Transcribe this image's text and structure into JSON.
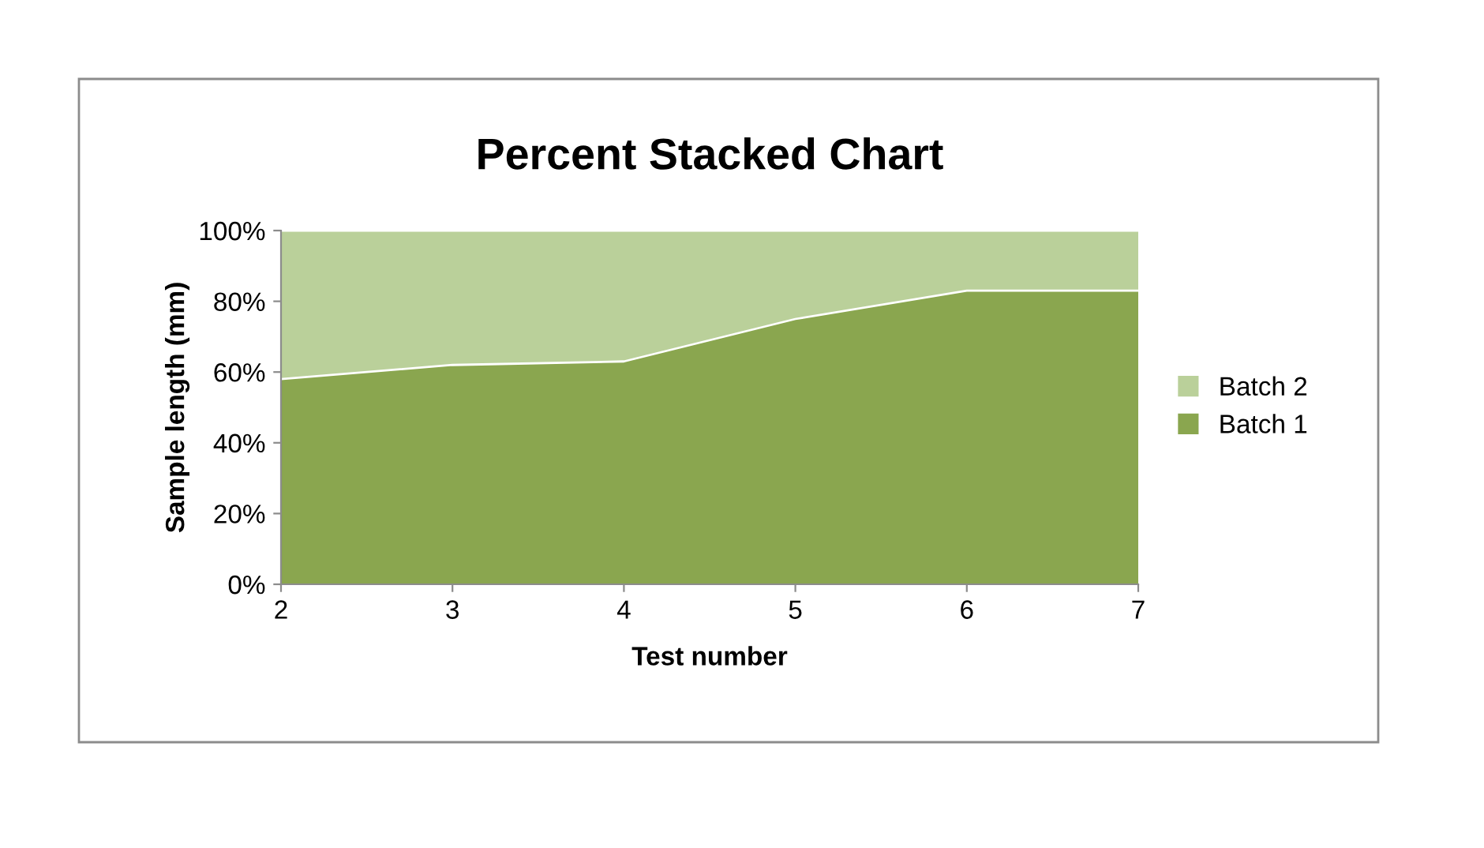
{
  "chart_data": {
    "type": "area",
    "stacked": true,
    "title": "Percent Stacked Chart",
    "xlabel": "Test number",
    "ylabel": "Sample length (mm)",
    "x": [
      2,
      3,
      4,
      5,
      6,
      7
    ],
    "series": [
      {
        "name": "Batch 1",
        "color": "#8aa64f",
        "values": [
          58,
          62,
          63,
          75,
          83,
          83
        ]
      },
      {
        "name": "Batch 2",
        "color": "#bad09a",
        "values": [
          42,
          38,
          37,
          25,
          17,
          17
        ]
      }
    ],
    "xlim": [
      2,
      7
    ],
    "xticks": [
      2,
      3,
      4,
      5,
      6,
      7
    ],
    "ylim": [
      0,
      100
    ],
    "yticks": [
      {
        "value": 0,
        "label": "0%"
      },
      {
        "value": 20,
        "label": "20%"
      },
      {
        "value": 40,
        "label": "40%"
      },
      {
        "value": 60,
        "label": "60%"
      },
      {
        "value": 80,
        "label": "80%"
      },
      {
        "value": 100,
        "label": "100%"
      }
    ],
    "legend": "right"
  }
}
